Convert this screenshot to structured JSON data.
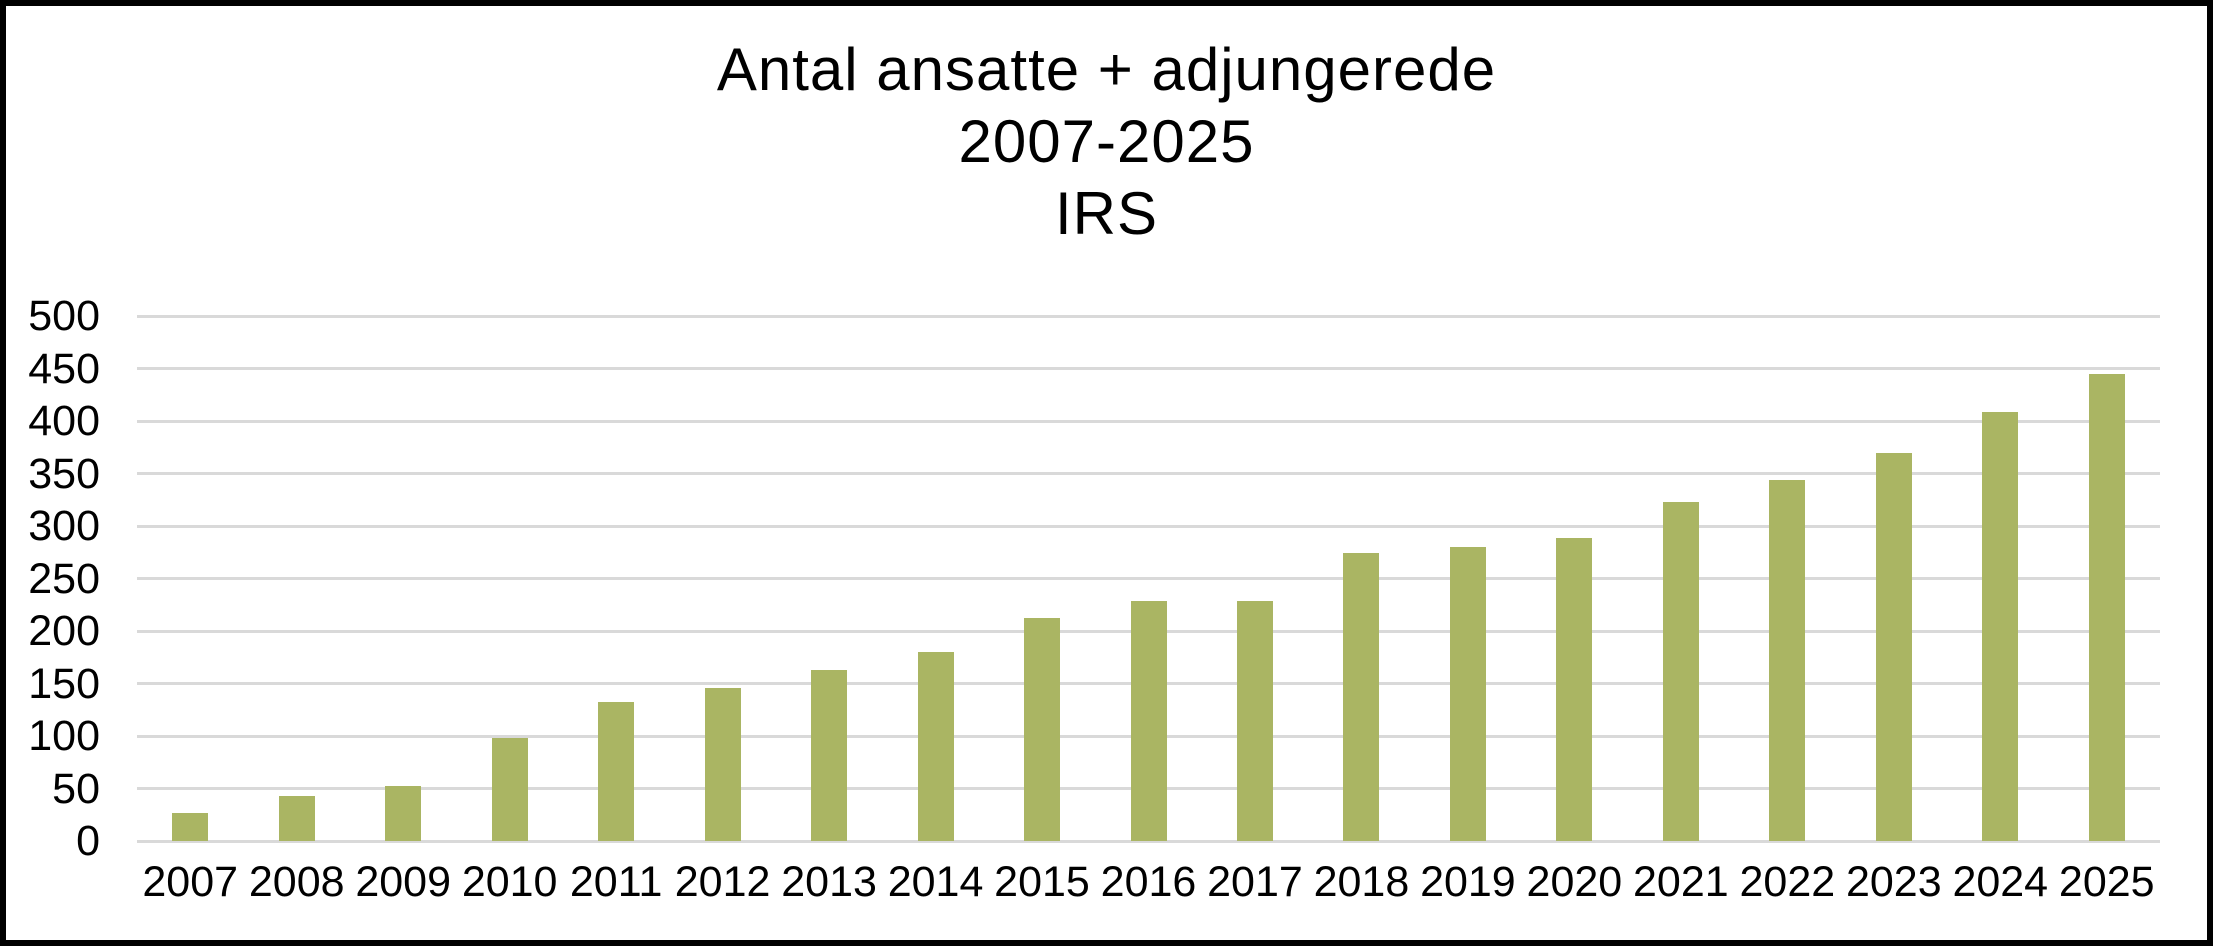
{
  "frame": {
    "background_color": "#ffffff",
    "border_color": "#000000"
  },
  "chart_data": {
    "type": "bar",
    "title": "Antal ansatte + adjungerede 2007-2025 IRS",
    "title_lines": [
      "Antal ansatte + adjungerede",
      "2007-2025",
      "IRS"
    ],
    "xlabel": "",
    "ylabel": "",
    "categories": [
      "2007",
      "2008",
      "2009",
      "2010",
      "2011",
      "2012",
      "2013",
      "2014",
      "2015",
      "2016",
      "2017",
      "2018",
      "2019",
      "2020",
      "2021",
      "2022",
      "2023",
      "2024",
      "2025"
    ],
    "values": [
      27,
      43,
      52,
      98,
      132,
      146,
      163,
      180,
      212,
      229,
      229,
      274,
      280,
      289,
      323,
      344,
      370,
      409,
      445
    ],
    "ylim": [
      0,
      500
    ],
    "y_ticks": [
      0,
      50,
      100,
      150,
      200,
      250,
      300,
      350,
      400,
      450,
      500
    ],
    "grid": true,
    "legend_position": "none",
    "bar_color": "#aab563",
    "gridline_color": "#d9d9d9",
    "text_color": "#000000"
  }
}
